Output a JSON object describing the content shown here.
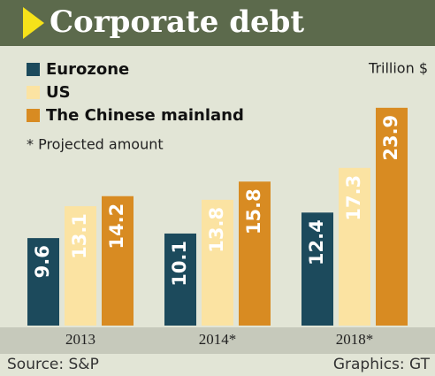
{
  "chart_data": {
    "type": "bar",
    "title": "Corporate debt",
    "unit_label": "Trillion $",
    "note": "* Projected amount",
    "categories": [
      "2013",
      "2014*",
      "2018*"
    ],
    "series": [
      {
        "name": "Eurozone",
        "color": "#1c4a5c",
        "values": [
          9.6,
          10.1,
          12.4
        ]
      },
      {
        "name": "US",
        "color": "#fbe3a2",
        "values": [
          13.1,
          13.8,
          17.3
        ]
      },
      {
        "name": "The Chinese mainland",
        "color": "#d88b22",
        "values": [
          14.2,
          15.8,
          23.9
        ]
      }
    ],
    "source": "Source: S&P",
    "credit": "Graphics: GT"
  }
}
